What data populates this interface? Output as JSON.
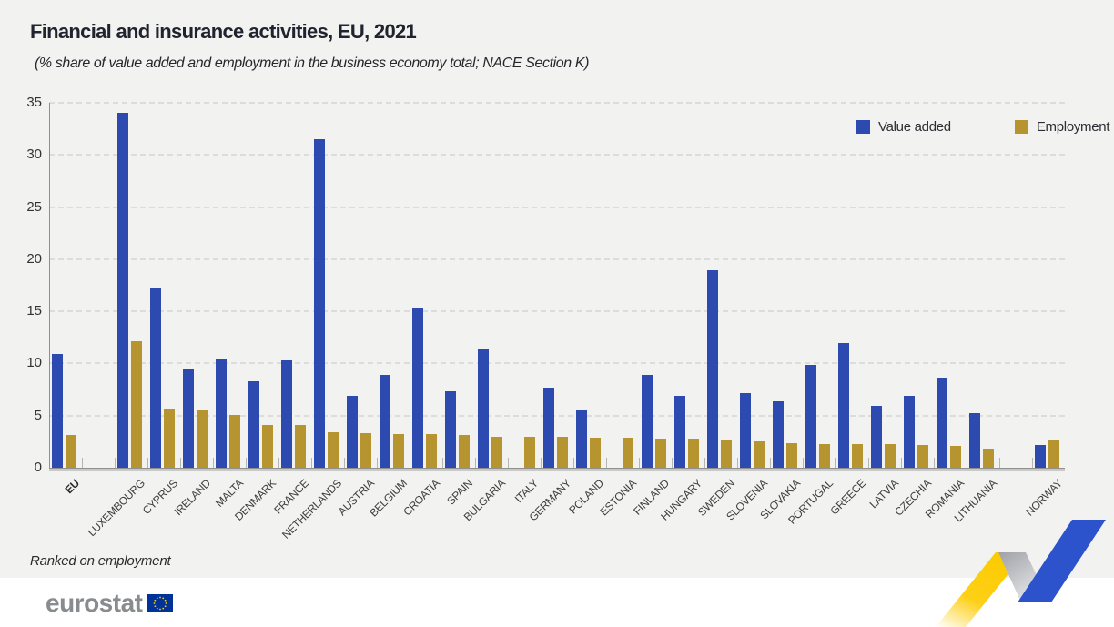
{
  "title": "Financial and insurance activities, EU, 2021",
  "subtitle": "(% share of value added and employment in the business economy total; NACE Section K)",
  "footnote": "Ranked on employment",
  "logo": {
    "text": "eurostat"
  },
  "colors": {
    "value_added": "#2c4ab0",
    "employment": "#b6942f",
    "figure_background": "#f2f2f1",
    "page_background": "#ffffff",
    "gridline": "#dcdcdb",
    "axis": "#8f8f8f",
    "title_text": "#20242e",
    "zigzag_yellow": "#fdd017",
    "zigzag_gray": "#bfc1c5",
    "zigzag_blue": "#2c52cc",
    "eu_flag_blue": "#003399",
    "eu_flag_stars": "#ffcc00",
    "logo_gray": "#898c8e"
  },
  "legend": [
    {
      "label": "Value added",
      "color": "#2c4ab0"
    },
    {
      "label": "Employment",
      "color": "#b6942f"
    }
  ],
  "chart_data": {
    "type": "bar",
    "title": "Financial and insurance activities, EU, 2021",
    "subtitle": "(% share of value added and employment in the business economy total; NACE Section K)",
    "footnote": "Ranked on employment",
    "ylabel": "",
    "xlabel": "",
    "ylim": [
      0,
      35
    ],
    "yticks": [
      0,
      5,
      10,
      15,
      20,
      25,
      30,
      35
    ],
    "grid": "dashed-horizontal",
    "legend_position": "top-right",
    "sort_note": "ranked on employment, descending",
    "gap_after_categories": [
      "EU",
      "LITHUANIA"
    ],
    "categories": [
      "EU",
      "LUXEMBOURG",
      "CYPRUS",
      "IRELAND",
      "MALTA",
      "DENMARK",
      "FRANCE",
      "NETHERLANDS",
      "AUSTRIA",
      "BELGIUM",
      "CROATIA",
      "SPAIN",
      "BULGARIA",
      "ITALY",
      "GERMANY",
      "POLAND",
      "ESTONIA",
      "FINLAND",
      "HUNGARY",
      "SWEDEN",
      "SLOVENIA",
      "SLOVAKIA",
      "PORTUGAL",
      "GREECE",
      "LATVIA",
      "CZECHIA",
      "ROMANIA",
      "LITHUANIA",
      "NORWAY"
    ],
    "series": [
      {
        "name": "Value added",
        "color": "#2c4ab0",
        "values": [
          10.9,
          34.0,
          17.3,
          9.5,
          10.4,
          8.3,
          10.3,
          31.5,
          6.9,
          8.9,
          15.3,
          7.3,
          11.4,
          null,
          7.7,
          5.6,
          null,
          8.9,
          6.9,
          18.9,
          7.2,
          6.4,
          9.9,
          12.0,
          5.9,
          6.9,
          8.6,
          5.2,
          2.2
        ]
      },
      {
        "name": "Employment",
        "color": "#b6942f",
        "values": [
          3.1,
          12.1,
          5.7,
          5.6,
          5.1,
          4.1,
          4.1,
          3.4,
          3.3,
          3.2,
          3.2,
          3.1,
          3.0,
          3.0,
          3.0,
          2.9,
          2.9,
          2.8,
          2.8,
          2.6,
          2.5,
          2.4,
          2.3,
          2.3,
          2.3,
          2.2,
          2.1,
          1.8,
          2.6
        ]
      }
    ]
  }
}
